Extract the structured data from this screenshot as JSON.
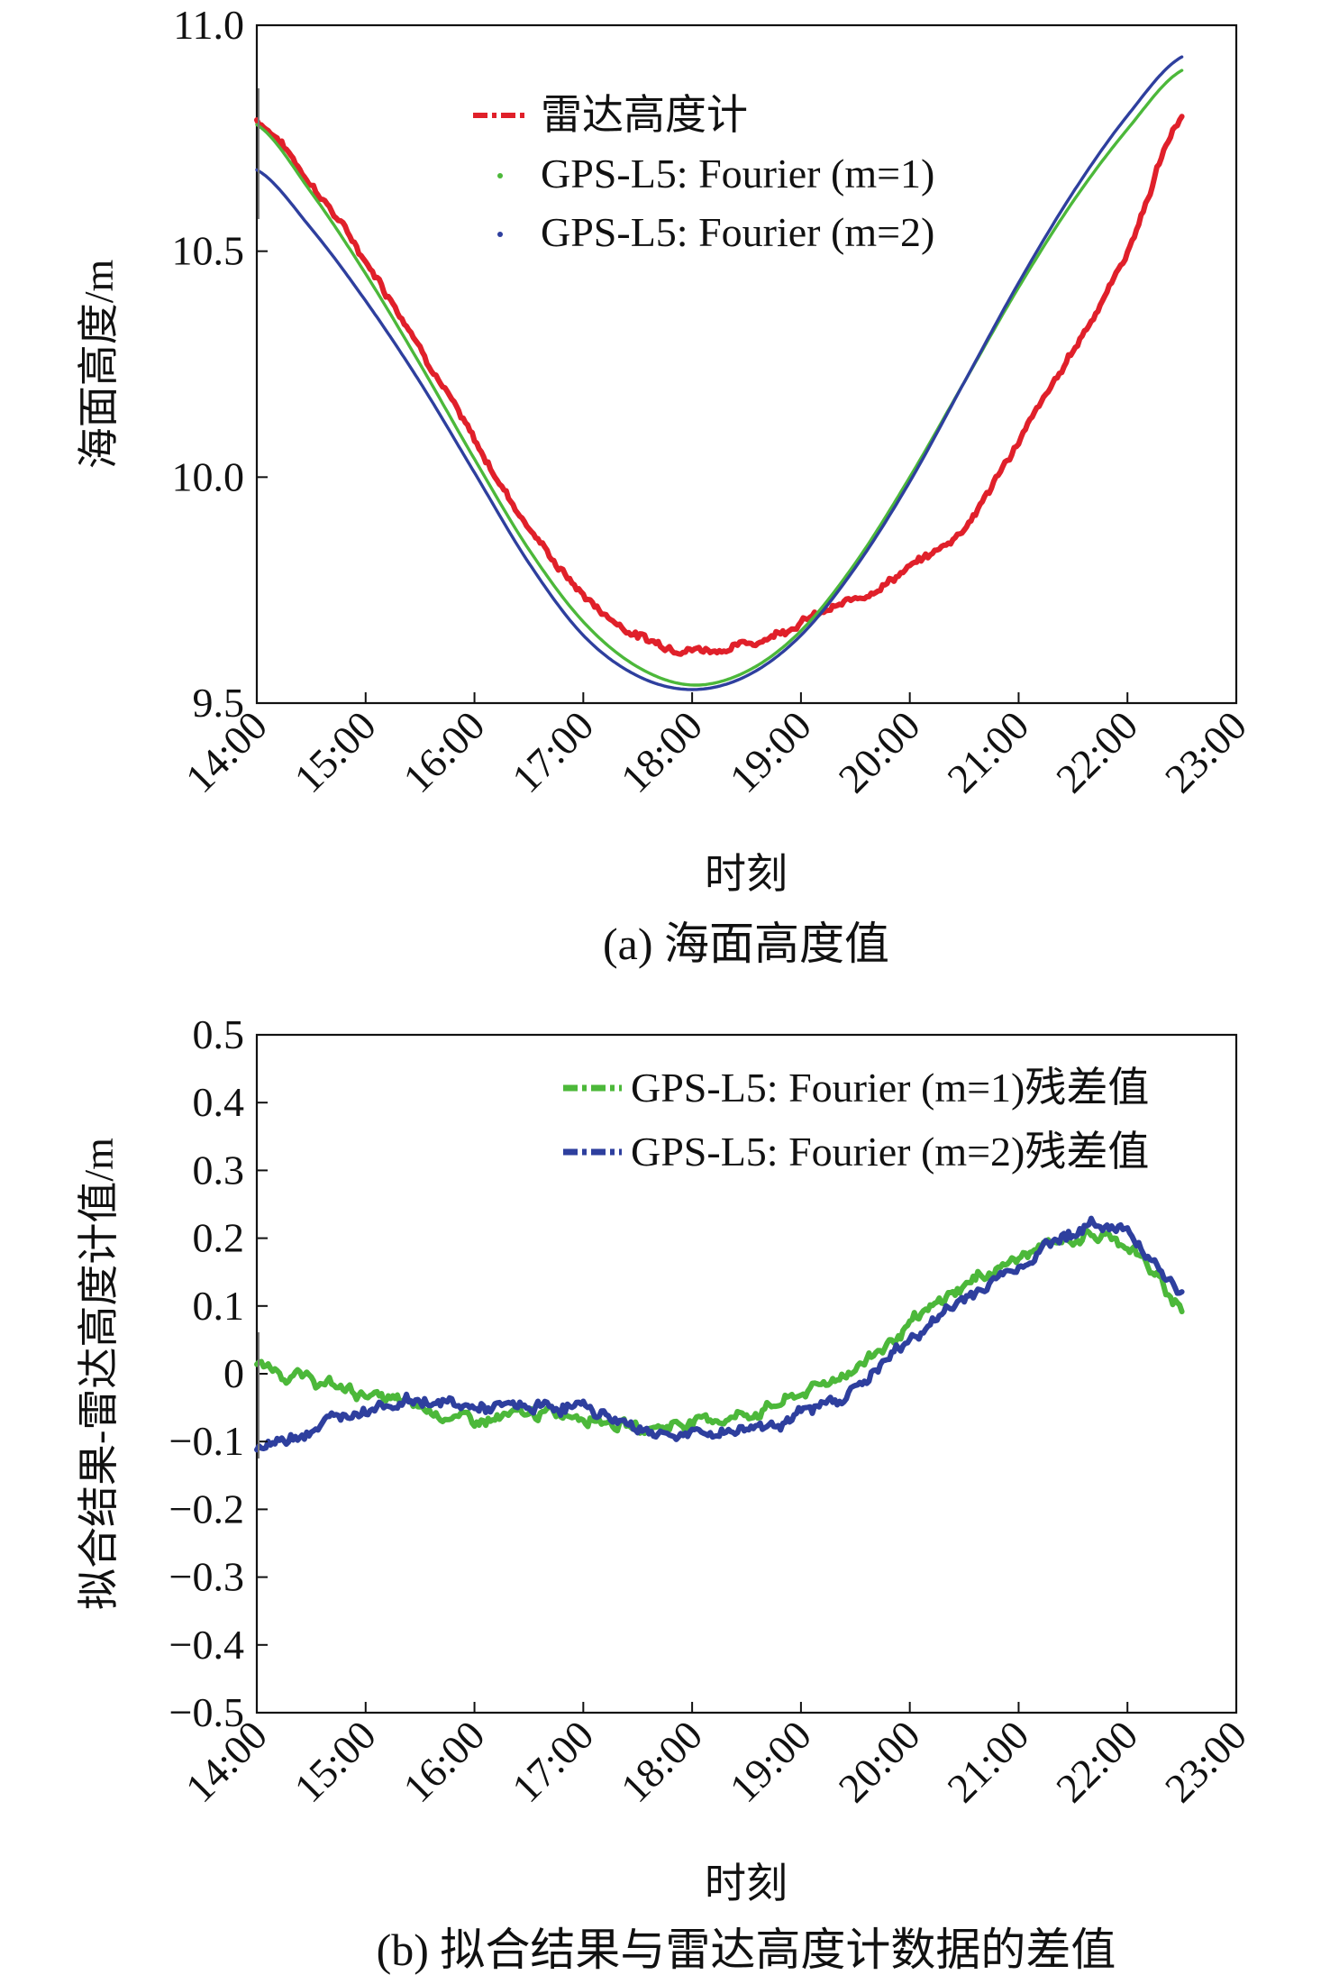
{
  "chart_data": [
    {
      "type": "line",
      "caption": "(a) 海面高度值",
      "xlabel": "时刻",
      "ylabel": "海面高度/m",
      "xlim": [
        "14:00",
        "23:00"
      ],
      "ylim": [
        9.5,
        11.0
      ],
      "grid": false,
      "legend_position": "top-center",
      "x_ticks": [
        "14:00",
        "15:00",
        "16:00",
        "17:00",
        "18:00",
        "19:00",
        "20:00",
        "21:00",
        "22:00",
        "23:00"
      ],
      "y_ticks": [
        "9.5",
        "10.0",
        "10.5",
        "11.0"
      ],
      "series": [
        {
          "name": "雷达高度计",
          "color": "#e0202a",
          "style": "noisy-dashed",
          "x": [
            "14:00",
            "14:30",
            "15:00",
            "15:30",
            "16:00",
            "16:30",
            "17:00",
            "17:30",
            "18:00",
            "18:30",
            "19:00",
            "19:30",
            "20:00",
            "20:30",
            "21:00",
            "21:30",
            "22:00",
            "22:30"
          ],
          "values": [
            10.79,
            10.65,
            10.48,
            10.29,
            10.08,
            9.89,
            9.74,
            9.65,
            9.62,
            9.63,
            9.68,
            9.73,
            9.8,
            9.89,
            10.08,
            10.28,
            10.5,
            10.8
          ]
        },
        {
          "name": "GPS-L5: Fourier (m=1)",
          "color": "#4cb83a",
          "style": "smooth",
          "x": [
            "14:00",
            "14:30",
            "15:00",
            "15:30",
            "16:00",
            "16:30",
            "17:00",
            "17:30",
            "18:00",
            "18:30",
            "19:00",
            "19:30",
            "20:00",
            "20:30",
            "21:00",
            "21:30",
            "22:00",
            "22:30"
          ],
          "values": [
            10.78,
            10.63,
            10.45,
            10.25,
            10.04,
            9.84,
            9.68,
            9.58,
            9.54,
            9.57,
            9.66,
            9.81,
            10.0,
            10.21,
            10.42,
            10.61,
            10.77,
            10.9
          ]
        },
        {
          "name": "GPS-L5: Fourier (m=2)",
          "color": "#2e3f9e",
          "style": "smooth",
          "x": [
            "14:00",
            "14:30",
            "15:00",
            "15:30",
            "16:00",
            "16:30",
            "17:00",
            "17:30",
            "18:00",
            "18:30",
            "19:00",
            "19:30",
            "20:00",
            "20:30",
            "21:00",
            "21:30",
            "22:00",
            "22:30"
          ],
          "values": [
            10.68,
            10.55,
            10.39,
            10.21,
            10.01,
            9.81,
            9.65,
            9.56,
            9.53,
            9.56,
            9.65,
            9.8,
            9.99,
            10.21,
            10.43,
            10.63,
            10.8,
            10.93
          ]
        }
      ]
    },
    {
      "type": "line",
      "caption": "(b) 拟合结果与雷达高度计数据的差值",
      "xlabel": "时刻",
      "ylabel": "拟合结果-雷达高度计值/m",
      "xlim": [
        "14:00",
        "23:00"
      ],
      "ylim": [
        -0.5,
        0.5
      ],
      "grid": false,
      "legend_position": "top-right",
      "x_ticks": [
        "14:00",
        "15:00",
        "16:00",
        "17:00",
        "18:00",
        "19:00",
        "20:00",
        "21:00",
        "22:00",
        "23:00"
      ],
      "y_ticks": [
        "0.5",
        "0.4",
        "0.3",
        "0.2",
        "0.1",
        "0",
        "−0.1",
        "−0.2",
        "−0.3",
        "−0.4",
        "−0.5"
      ],
      "series": [
        {
          "name": "GPS-L5: Fourier (m=1)残差值",
          "color": "#4cb83a",
          "style": "noisy-dashed",
          "x": [
            "14:00",
            "14:30",
            "15:00",
            "15:30",
            "16:00",
            "16:30",
            "17:00",
            "17:30",
            "18:00",
            "18:30",
            "19:00",
            "19:30",
            "20:00",
            "20:30",
            "21:00",
            "21:30",
            "22:00",
            "22:30"
          ],
          "values": [
            0.01,
            -0.01,
            -0.03,
            -0.05,
            -0.07,
            -0.06,
            -0.06,
            -0.08,
            -0.07,
            -0.06,
            -0.03,
            0.01,
            0.07,
            0.13,
            0.17,
            0.2,
            0.19,
            0.1
          ]
        },
        {
          "name": "GPS-L5: Fourier (m=2)残差值",
          "color": "#2e3f9e",
          "style": "noisy-dashed",
          "x": [
            "14:00",
            "14:30",
            "15:00",
            "15:30",
            "16:00",
            "16:30",
            "17:00",
            "17:30",
            "18:00",
            "18:30",
            "19:00",
            "19:30",
            "20:00",
            "20:30",
            "21:00",
            "21:30",
            "22:00",
            "22:30"
          ],
          "values": [
            -0.11,
            -0.08,
            -0.05,
            -0.04,
            -0.05,
            -0.05,
            -0.05,
            -0.08,
            -0.09,
            -0.08,
            -0.06,
            -0.02,
            0.05,
            0.11,
            0.16,
            0.21,
            0.21,
            0.12
          ]
        }
      ]
    }
  ]
}
